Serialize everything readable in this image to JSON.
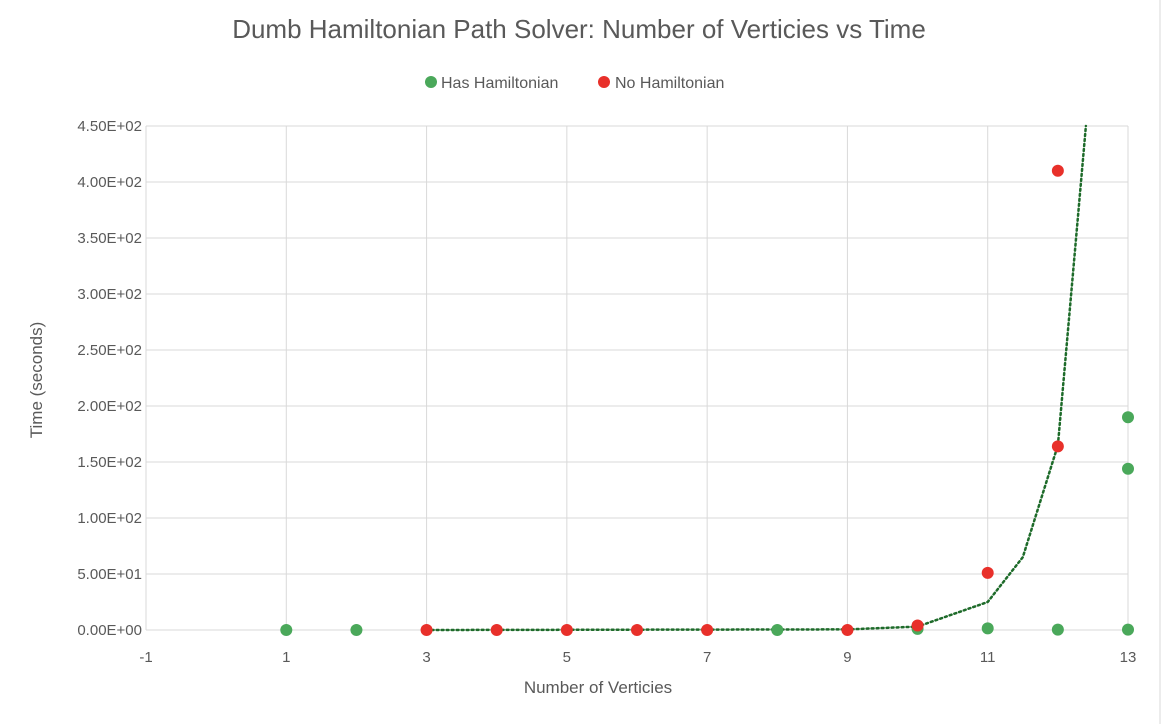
{
  "chart_data": {
    "type": "scatter",
    "title": "Dumb Hamiltonian Path Solver: Number of Verticies vs Time",
    "xlabel": "Number of Verticies",
    "ylabel": "Time (seconds)",
    "xlim": [
      -1,
      13
    ],
    "ylim": [
      0,
      450
    ],
    "x_ticks": [
      -1,
      1,
      3,
      5,
      7,
      9,
      11,
      13
    ],
    "x_tick_labels": [
      "-1",
      "1",
      "3",
      "5",
      "7",
      "9",
      "11",
      "13"
    ],
    "y_ticks": [
      0,
      50,
      100,
      150,
      200,
      250,
      300,
      350,
      400,
      450
    ],
    "y_tick_labels": [
      "0.00E+00",
      "5.00E+01",
      "1.00E+02",
      "1.50E+02",
      "2.00E+02",
      "2.50E+02",
      "3.00E+02",
      "3.50E+02",
      "4.00E+02",
      "4.50E+02"
    ],
    "grid": true,
    "legend_position": "top",
    "series": [
      {
        "name": "Has Hamiltonian",
        "color": "#4aa85a",
        "points": [
          {
            "x": 1,
            "y": 0
          },
          {
            "x": 2,
            "y": 0
          },
          {
            "x": 8,
            "y": 0
          },
          {
            "x": 10,
            "y": 1
          },
          {
            "x": 11,
            "y": 1.5
          },
          {
            "x": 12,
            "y": 0.3
          },
          {
            "x": 13,
            "y": 0.3
          },
          {
            "x": 13,
            "y": 144
          },
          {
            "x": 13,
            "y": 190
          }
        ]
      },
      {
        "name": "No Hamiltonian",
        "color": "#e8302a",
        "points": [
          {
            "x": 3,
            "y": 0
          },
          {
            "x": 4,
            "y": 0
          },
          {
            "x": 5,
            "y": 0
          },
          {
            "x": 6,
            "y": 0
          },
          {
            "x": 7,
            "y": 0
          },
          {
            "x": 9,
            "y": 0
          },
          {
            "x": 10,
            "y": 4
          },
          {
            "x": 11,
            "y": 51
          },
          {
            "x": 12,
            "y": 164
          },
          {
            "x": 12,
            "y": 410
          }
        ]
      }
    ],
    "trendline": {
      "type": "exponential",
      "style": "dotted",
      "color": "#1e6b2a",
      "points": [
        {
          "x": 3,
          "y": 0
        },
        {
          "x": 9,
          "y": 0.5
        },
        {
          "x": 10,
          "y": 3
        },
        {
          "x": 11,
          "y": 25
        },
        {
          "x": 11.5,
          "y": 65
        },
        {
          "x": 12,
          "y": 165
        },
        {
          "x": 12.4,
          "y": 450
        }
      ]
    }
  }
}
